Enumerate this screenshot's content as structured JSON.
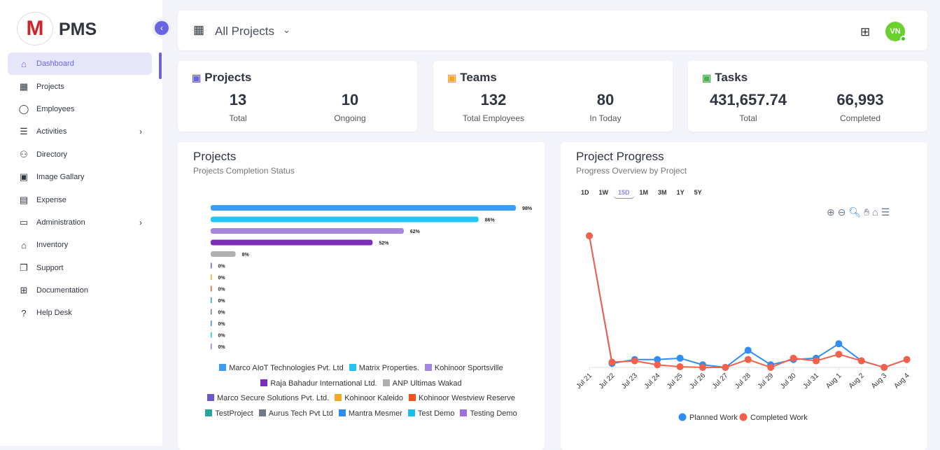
{
  "app": {
    "brand": "PMS",
    "logo_letter": "M"
  },
  "sidebar": {
    "items": [
      {
        "label": "Dashboard",
        "icon": "home-icon",
        "glyph": "⌂",
        "active": true
      },
      {
        "label": "Projects",
        "icon": "building-icon",
        "glyph": "▦"
      },
      {
        "label": "Employees",
        "icon": "user-icon",
        "glyph": "◯"
      },
      {
        "label": "Activities",
        "icon": "list-icon",
        "glyph": "☰",
        "chevron": true
      },
      {
        "label": "Directory",
        "icon": "users-icon",
        "glyph": "⚇"
      },
      {
        "label": "Image Gallary",
        "icon": "image-icon",
        "glyph": "▣"
      },
      {
        "label": "Expense",
        "icon": "receipt-icon",
        "glyph": "▤"
      },
      {
        "label": "Administration",
        "icon": "archive-icon",
        "glyph": "▭",
        "chevron": true
      },
      {
        "label": "Inventory",
        "icon": "store-icon",
        "glyph": "⌂"
      },
      {
        "label": "Support",
        "icon": "copy-icon",
        "glyph": "❐"
      },
      {
        "label": "Documentation",
        "icon": "book-icon",
        "glyph": "⊞"
      },
      {
        "label": "Help Desk",
        "icon": "question-icon",
        "glyph": "?"
      }
    ]
  },
  "header": {
    "project_select": "All Projects",
    "avatar_initials": "VN"
  },
  "stats": [
    {
      "title": "Projects",
      "icon": "building-icon",
      "icon_color": "#6b63e6",
      "values": [
        {
          "value": "13",
          "label": "Total"
        },
        {
          "value": "10",
          "label": "Ongoing"
        }
      ]
    },
    {
      "title": "Teams",
      "icon": "users-icon",
      "icon_color": "#f5a623",
      "values": [
        {
          "value": "132",
          "label": "Total Employees"
        },
        {
          "value": "80",
          "label": "In Today"
        }
      ]
    },
    {
      "title": "Tasks",
      "icon": "clipboard-check-icon",
      "icon_color": "#4caf50",
      "values": [
        {
          "value": "431,657.74",
          "label": "Total"
        },
        {
          "value": "66,993",
          "label": "Completed"
        }
      ]
    }
  ],
  "chart_data": [
    {
      "type": "bar",
      "orientation": "horizontal",
      "title": "Projects",
      "subtitle": "Projects Completion Status",
      "unit": "%",
      "categories": [
        "Marco AIoT Technologies Pvt. Ltd",
        "Matrix Properties.",
        "Kohinoor Sportsville",
        "Raja Bahadur International Ltd.",
        "ANP Ultimas Wakad",
        "Marco Secure Solutions Pvt. Ltd.",
        "Kohinoor Kaleido",
        "Kohinoor Westview Reserve",
        "TestProject",
        "Aurus Tech Pvt Ltd",
        "Mantra Mesmer",
        "Test Demo",
        "Testing Demo"
      ],
      "values": [
        98,
        86,
        62,
        52,
        8,
        0,
        0,
        0,
        0,
        0,
        0,
        0,
        0
      ],
      "labels": [
        "98%",
        "86%",
        "62%",
        "52%",
        "8%",
        "0%",
        "0%",
        "0%",
        "0%",
        "0%",
        "0%",
        "0%",
        "0%"
      ],
      "colors": [
        "#3d9df5",
        "#21c4f5",
        "#a586e0",
        "#7b2fb8",
        "#b0b0b0",
        "#6a5acd",
        "#f5a623",
        "#f4511e",
        "#26a69a",
        "#6e7a8a",
        "#2d8cf0",
        "#17bff0",
        "#9b6fe0"
      ],
      "legend": "bottom"
    },
    {
      "type": "line",
      "title": "Project Progress",
      "subtitle": "Progress Overview by Project",
      "ranges": [
        "1D",
        "1W",
        "15D",
        "1M",
        "3M",
        "1Y",
        "5Y"
      ],
      "selected_range": "15D",
      "x": [
        "Jul 21",
        "Jul 22",
        "Jul 23",
        "Jul 24",
        "Jul 25",
        "Jul 26",
        "Jul 27",
        "Jul 28",
        "Jul 29",
        "Jul 30",
        "Jul 31",
        "Aug 1",
        "Aug 2",
        "Aug 3",
        "Aug 4"
      ],
      "series": [
        {
          "name": "Planned Work",
          "color": "#2e8ef5",
          "values": [
            100,
            3,
            6,
            6,
            7,
            2,
            0,
            13,
            2,
            6,
            7,
            18,
            5,
            0,
            6
          ]
        },
        {
          "name": "Completed Work",
          "color": "#f4614a",
          "values": [
            100,
            4,
            5,
            2,
            0.5,
            0,
            0,
            6,
            0,
            7,
            5,
            10,
            5,
            0,
            6
          ]
        }
      ],
      "legend": "bottom",
      "y_axis_labels": false
    }
  ]
}
